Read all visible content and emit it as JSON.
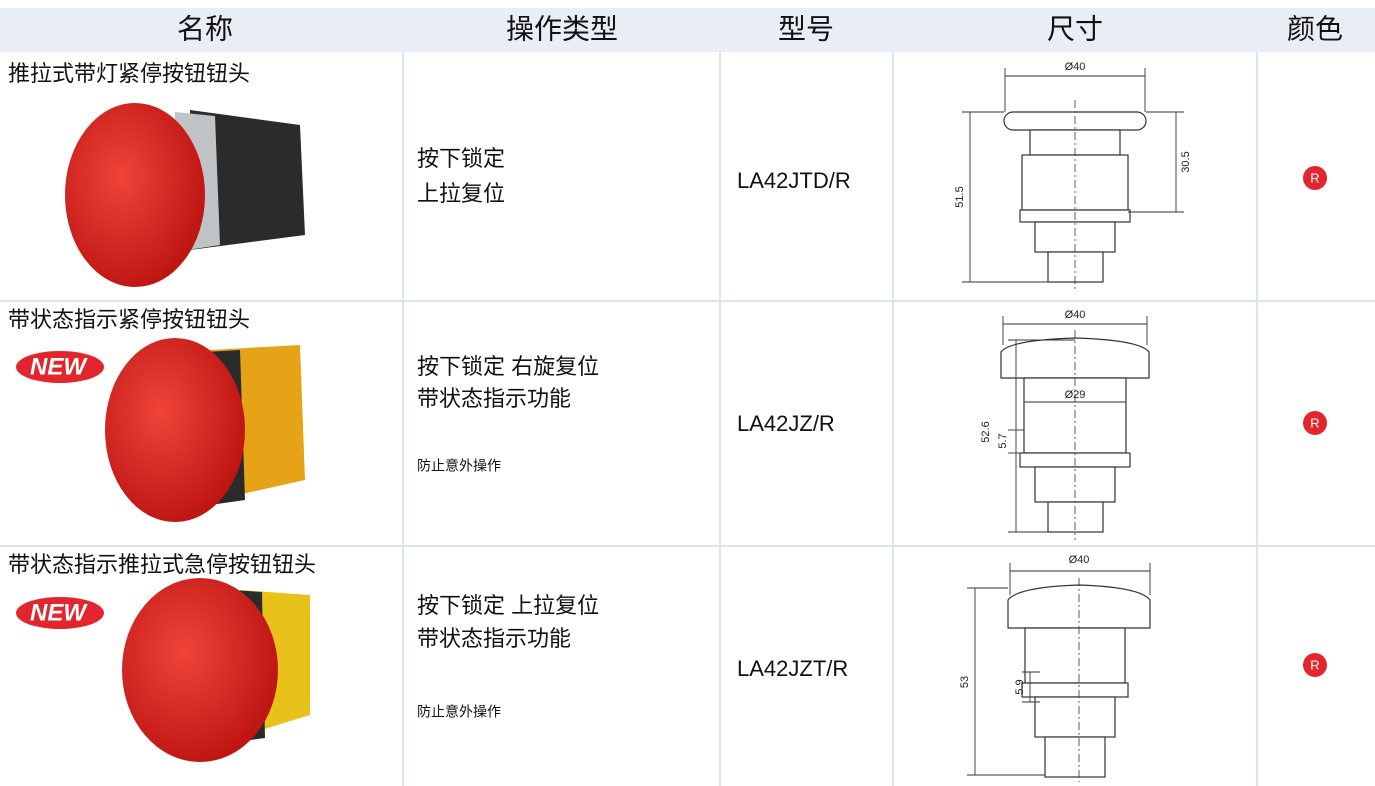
{
  "header": [
    "名称",
    "操作类型",
    "型号",
    "尺寸",
    "颜色"
  ],
  "rows": [
    {
      "name": "推拉式带灯紧停按钮钮头",
      "operation": [
        "按下锁定",
        "上拉复位"
      ],
      "model": "LA42JTD/R",
      "dimensions": [
        "Ø40",
        "51.5",
        "30.5"
      ],
      "color": "R"
    },
    {
      "name": "带状态指示紧停按钮钮头",
      "badge": "NEW",
      "operation": [
        "按下锁定  右旋复位",
        "带状态指示功能"
      ],
      "note": "防止意外操作",
      "model": "LA42JZ/R",
      "dimensions": [
        "Ø40",
        "Ø29",
        "52.6",
        "5.7"
      ],
      "color": "R"
    },
    {
      "name": "带状态指示推拉式急停按钮钮头",
      "badge": "NEW",
      "operation": [
        "按下锁定  上拉复位",
        "带状态指示功能"
      ],
      "note": "防止意外操作",
      "model": "LA42JZT/R",
      "dimensions": [
        "Ø40",
        "53",
        "5.9"
      ],
      "color": "R"
    }
  ]
}
